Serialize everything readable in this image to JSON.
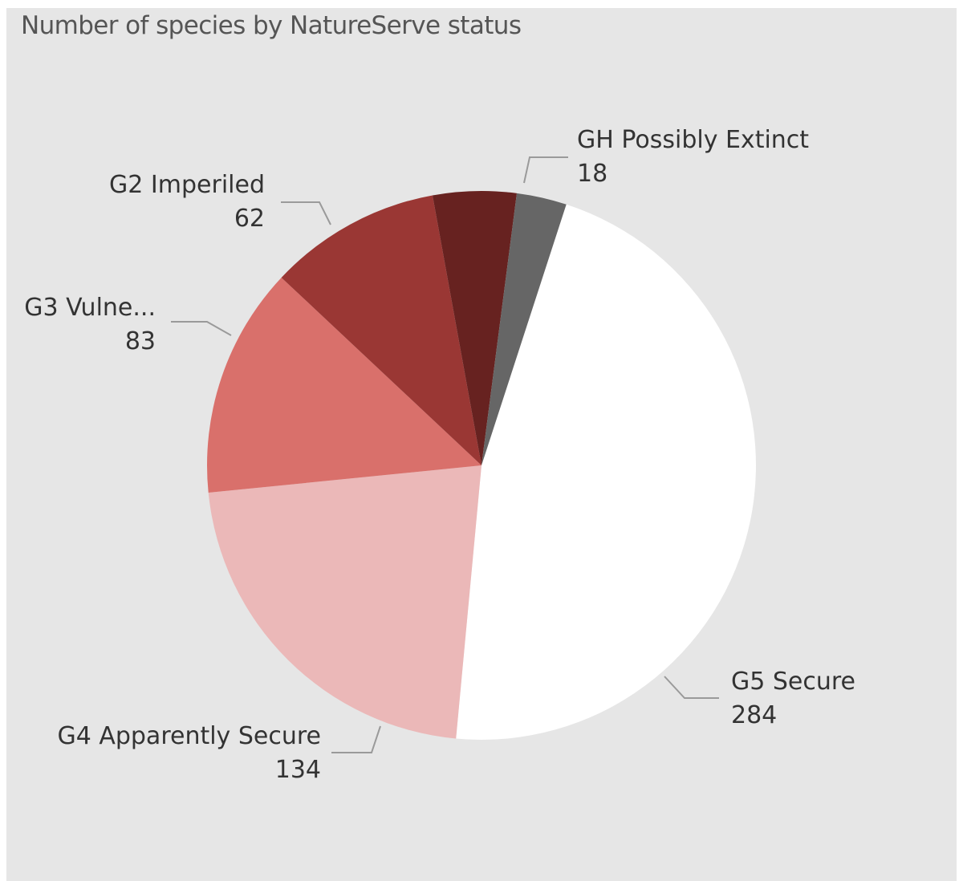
{
  "chart_data": {
    "type": "pie",
    "title": "Number of species by NatureServe status",
    "categories": [
      "G5 Secure",
      "G4 Apparently Secure",
      "G3 Vulne...",
      "G2 Imperiled",
      "",
      "GH Possibly Extinct"
    ],
    "values": [
      284,
      134,
      83,
      62,
      30,
      18
    ],
    "colors": [
      "#ffffff",
      "#ebb8b8",
      "#d9706b",
      "#9a3734",
      "#672220",
      "#666666"
    ],
    "value_labels": [
      "284",
      "134",
      "83",
      "62",
      "",
      "18"
    ],
    "legend": "none",
    "start_angle_deg": 18,
    "direction": "clockwise"
  }
}
